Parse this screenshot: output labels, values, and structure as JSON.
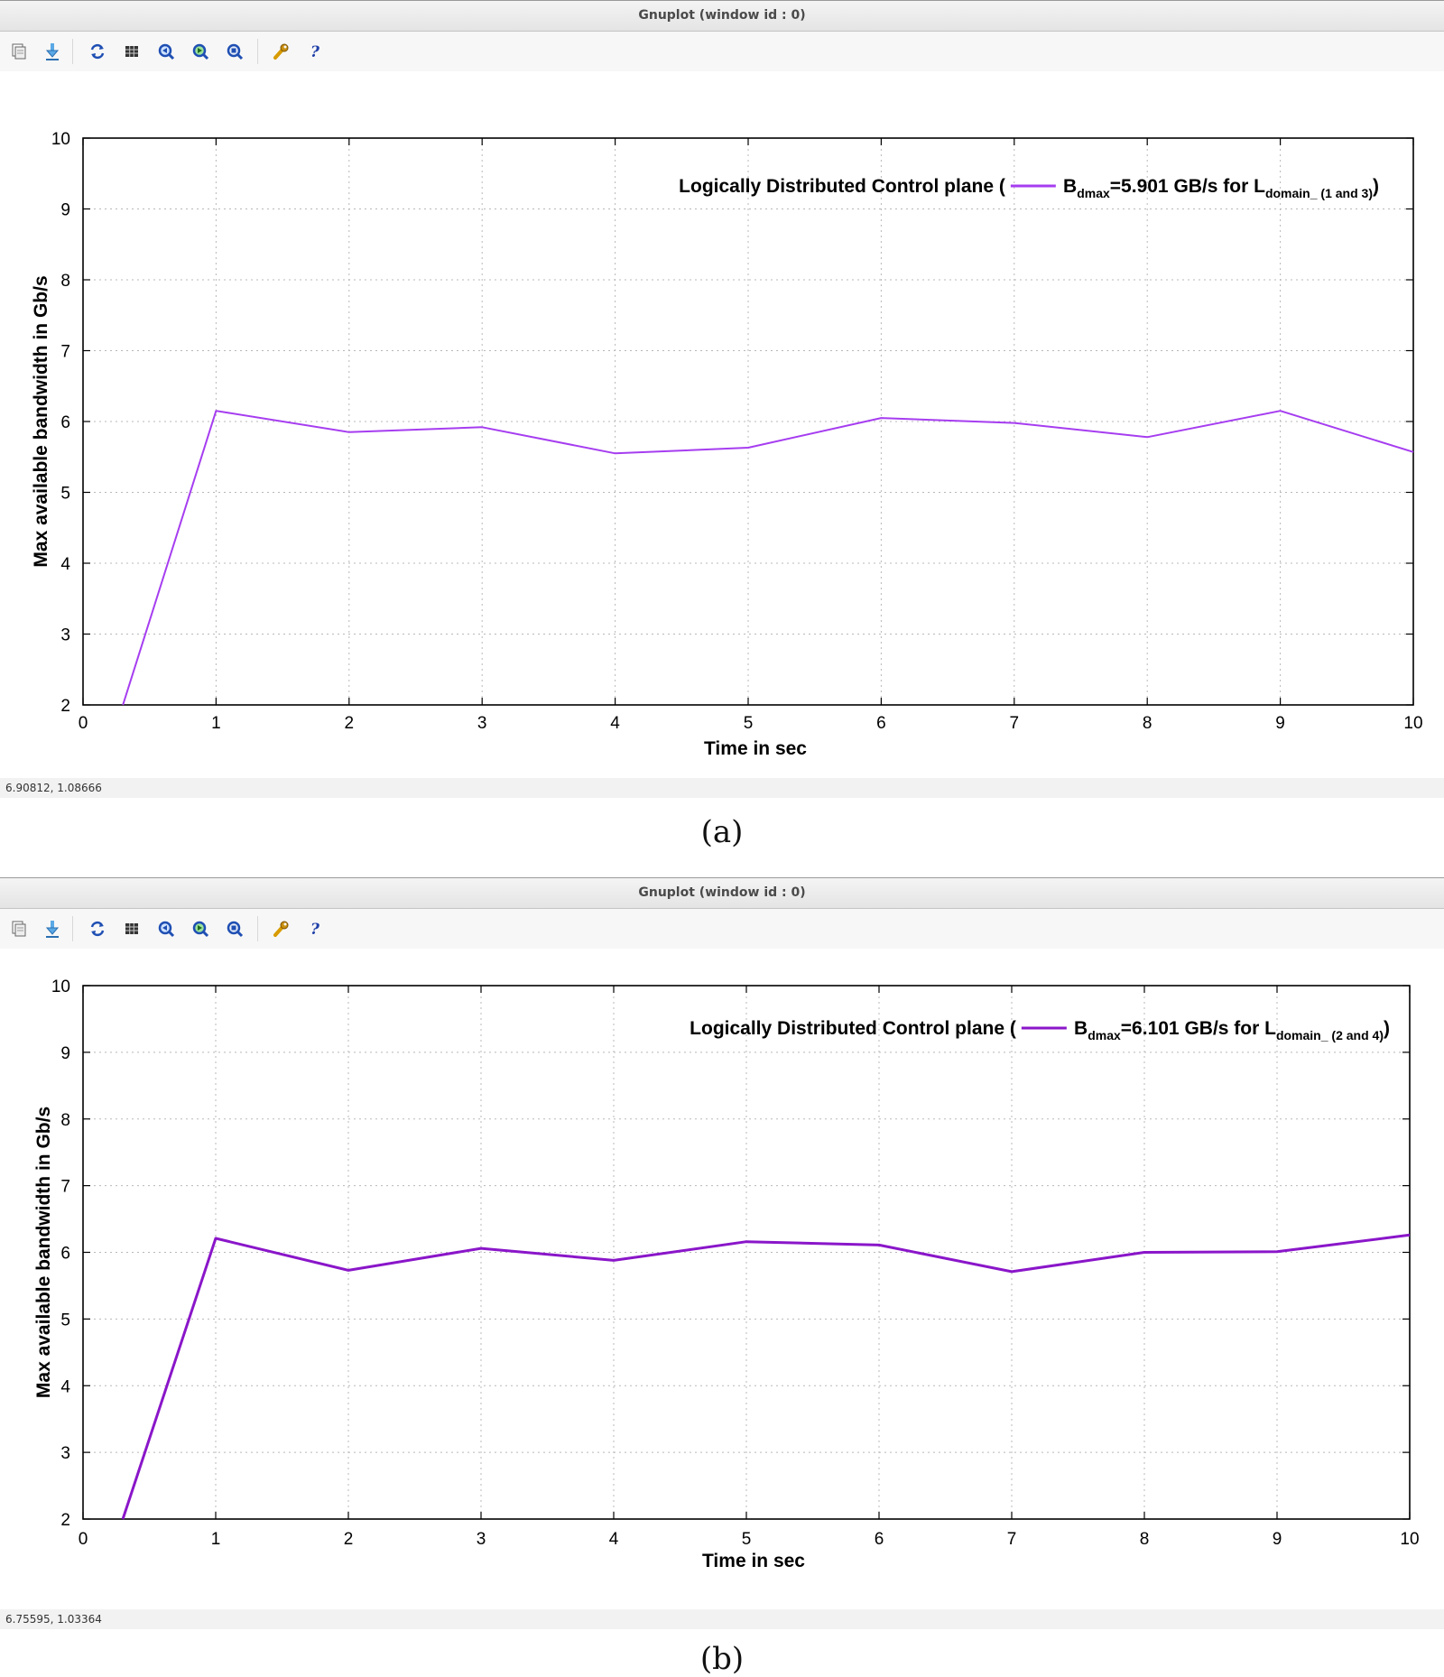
{
  "panels": [
    {
      "window_title": "Gnuplot (window id : 0)",
      "toolbar": [
        {
          "name": "copy-icon"
        },
        {
          "name": "export-icon"
        },
        {
          "name": "replot-icon"
        },
        {
          "name": "grid-icon"
        },
        {
          "name": "zoom-previous-icon"
        },
        {
          "name": "zoom-next-icon"
        },
        {
          "name": "autoscale-icon"
        },
        {
          "name": "settings-icon"
        },
        {
          "name": "help-icon"
        }
      ],
      "status_text": "6.90812,  1.08666",
      "caption": "(a)",
      "accent_color": "#a63df0"
    },
    {
      "window_title": "Gnuplot (window id : 0)",
      "toolbar": [
        {
          "name": "copy-icon"
        },
        {
          "name": "export-icon"
        },
        {
          "name": "replot-icon"
        },
        {
          "name": "grid-icon"
        },
        {
          "name": "zoom-previous-icon"
        },
        {
          "name": "zoom-next-icon"
        },
        {
          "name": "autoscale-icon"
        },
        {
          "name": "settings-icon"
        },
        {
          "name": "help-icon"
        }
      ],
      "status_text": "6.75595,  1.03364",
      "caption": "(b)",
      "accent_color": "#8a16c9"
    }
  ],
  "chart_data": [
    {
      "type": "line",
      "title": "",
      "xlabel": "Time in sec",
      "ylabel": "Max  available bandwidth in Gb/s",
      "xlim": [
        0,
        10
      ],
      "ylim": [
        2,
        10
      ],
      "x_ticks": [
        "0",
        "1",
        "2",
        "3",
        "4",
        "5",
        "6",
        "7",
        "8",
        "9",
        "10"
      ],
      "y_ticks": [
        "2",
        "3",
        "4",
        "5",
        "6",
        "7",
        "8",
        "9",
        "10"
      ],
      "grid": true,
      "legend_position": "top-right",
      "series": [
        {
          "name": "Logically Distributed Control plane",
          "legend": {
            "prefix": "Logically Distributed Control plane (",
            "b_main": "B",
            "b_sub": "dmax",
            "value_text": "=5.901 GB/s for L",
            "l_sub": "domain_",
            "l_sub2": " (1 and 3)",
            "suffix": ")"
          },
          "color": "#a63df0",
          "x": [
            0.3,
            1,
            2,
            3,
            4,
            5,
            6,
            7,
            8,
            9,
            10
          ],
          "y": [
            2,
            6.15,
            5.85,
            5.92,
            5.55,
            5.63,
            6.05,
            5.98,
            5.78,
            6.15,
            5.57
          ]
        }
      ]
    },
    {
      "type": "line",
      "title": "",
      "xlabel": "Time in sec",
      "ylabel": "Max available bandwidth in Gb/s",
      "xlim": [
        0,
        10
      ],
      "ylim": [
        2,
        10
      ],
      "x_ticks": [
        "0",
        "1",
        "2",
        "3",
        "4",
        "5",
        "6",
        "7",
        "8",
        "9",
        "10"
      ],
      "y_ticks": [
        "2",
        "3",
        "4",
        "5",
        "6",
        "7",
        "8",
        "9",
        "10"
      ],
      "grid": true,
      "legend_position": "top-right",
      "series": [
        {
          "name": "Logically Distributed Control plane",
          "legend": {
            "prefix": "Logically Distributed Control plane (",
            "b_main": "B",
            "b_sub": "dmax",
            "value_text": "=6.101 GB/s for L",
            "l_sub": "domain_",
            "l_sub2": " (2 and 4)",
            "suffix": ")"
          },
          "color": "#8a16c9",
          "x": [
            0.3,
            1,
            2,
            3,
            4,
            5,
            6,
            7,
            8,
            9,
            10
          ],
          "y": [
            2,
            6.21,
            5.73,
            6.06,
            5.88,
            6.16,
            6.11,
            5.71,
            6.0,
            6.01,
            6.26
          ]
        }
      ]
    }
  ]
}
